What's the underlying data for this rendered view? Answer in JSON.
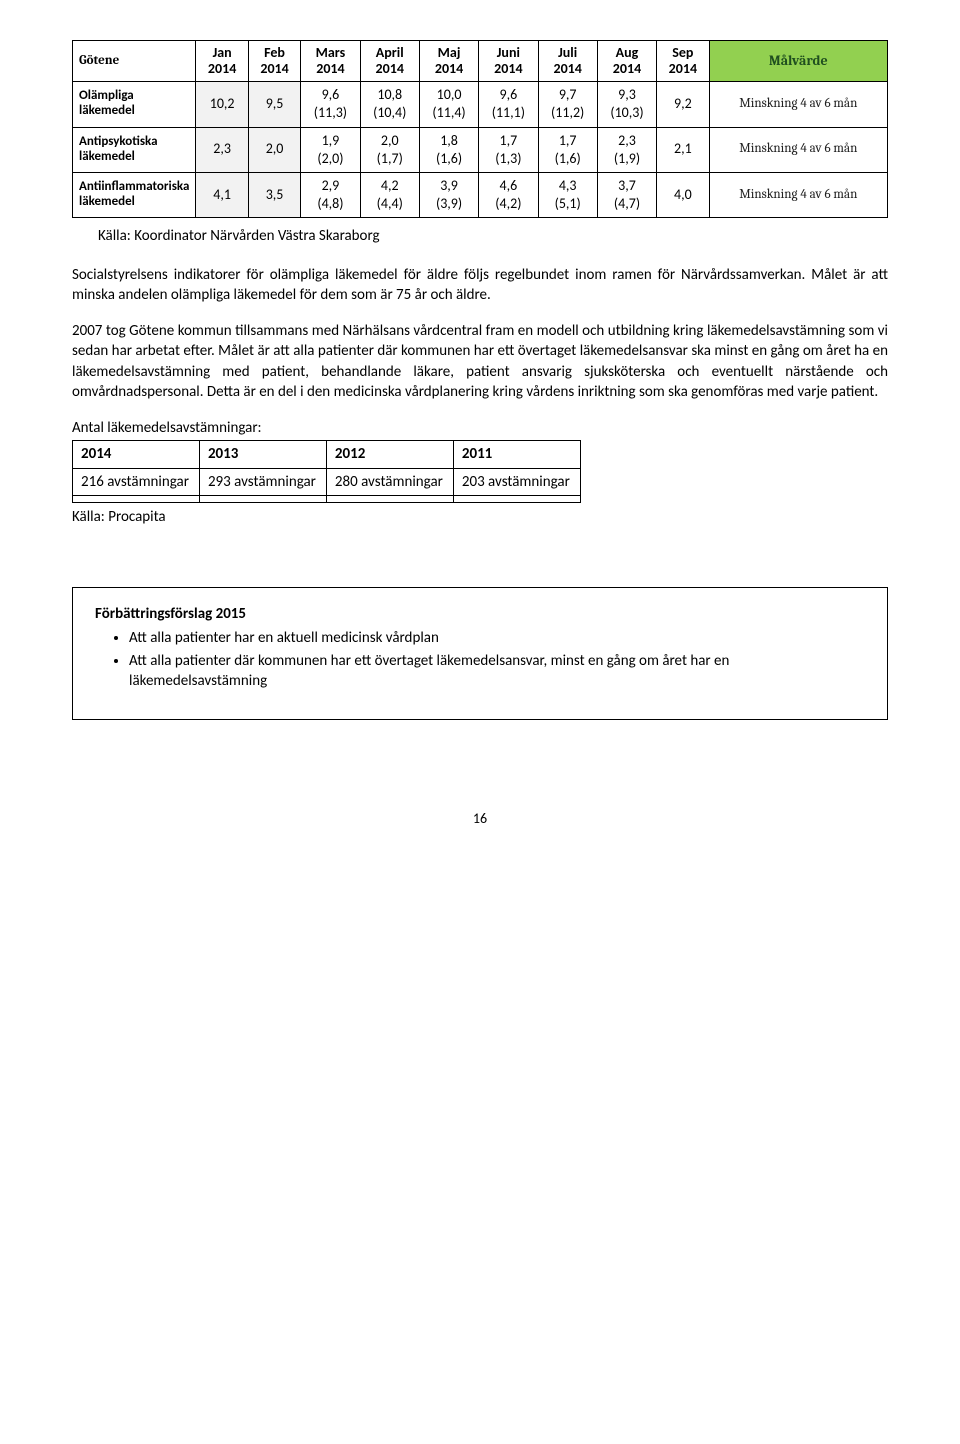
{
  "table1": {
    "corner": "Götene",
    "headers": [
      "Jan\n2014",
      "Feb\n2014",
      "Mars\n2014",
      "April\n2014",
      "Maj\n2014",
      "Juni\n2014",
      "Juli\n2014",
      "Aug\n2014",
      "Sep\n2014",
      "Målvärde"
    ],
    "rows": [
      {
        "label": "Olämpliga läkemedel",
        "jan": "10,2",
        "feb": "9,5",
        "mars": {
          "top": "9,6",
          "sub": "(11,3)"
        },
        "april": {
          "top": "10,8",
          "sub": "(10,4)"
        },
        "maj": {
          "top": "10,0",
          "sub": "(11,4)"
        },
        "juni": {
          "top": "9,6",
          "sub": "(11,1)"
        },
        "juli": {
          "top": "9,7",
          "sub": "(11,2)"
        },
        "aug": {
          "top": "9,3",
          "sub": "(10,3)"
        },
        "sep": "9,2",
        "mal": "Minskning 4 av 6 mån"
      },
      {
        "label": "Antipsykotiska läkemedel",
        "jan": "2,3",
        "feb": "2,0",
        "mars": {
          "top": "1,9",
          "sub": "(2,0)"
        },
        "april": {
          "top": "2,0",
          "sub": "(1,7)"
        },
        "maj": {
          "top": "1,8",
          "sub": "(1,6)"
        },
        "juni": {
          "top": "1,7",
          "sub": "(1,3)"
        },
        "juli": {
          "top": "1,7",
          "sub": "(1,6)"
        },
        "aug": {
          "top": "2,3",
          "sub": "(1,9)"
        },
        "sep": "2,1",
        "mal": "Minskning 4 av 6 mån"
      },
      {
        "label": "Antiinflammatoriska läkemedel",
        "jan": "4,1",
        "feb": "3,5",
        "mars": {
          "top": "2,9",
          "sub": "(4,8)"
        },
        "april": {
          "top": "4,2",
          "sub": "(4,4)"
        },
        "maj": {
          "top": "3,9",
          "sub": "(3,9)"
        },
        "juni": {
          "top": "4,6",
          "sub": "(4,2)"
        },
        "juli": {
          "top": "4,3",
          "sub": "(5,1)"
        },
        "aug": {
          "top": "3,7",
          "sub": "(4,7)"
        },
        "sep": "4,0",
        "mal": "Minskning 4 av 6 mån"
      }
    ],
    "header_bg_malvarde": "#92d050",
    "shaded_bg": "#f2f2f2"
  },
  "source1": "Källa: Koordinator Närvården Västra Skaraborg",
  "para1": "Socialstyrelsens indikatorer för olämpliga läkemedel för äldre följs regelbundet inom ramen för Närvårdssamverkan. Målet är att minska andelen olämpliga läkemedel för dem som är 75 år och äldre.",
  "para2": "2007 tog Götene kommun tillsammans med Närhälsans vårdcentral fram en modell och utbildning kring läkemedelsavstämning som vi sedan har arbetat efter. Målet är att alla patienter där kommunen har ett övertaget läkemedelsansvar ska minst en gång om året ha en läkemedelsavstämning med patient, behandlande läkare, patient ansvarig sjuksköterska och eventuellt närstående och omvårdnadspersonal. Detta är en del i den medicinska vårdplanering kring vårdens inriktning som ska genomföras med varje patient.",
  "table2": {
    "title": "Antal läkemedelsavstämningar:",
    "columns": [
      "2014",
      "2013",
      "2012",
      "2011"
    ],
    "rows": [
      [
        "216 avstämningar",
        "293 avstämningar",
        "280 avstämningar",
        "203 avstämningar"
      ],
      [
        "",
        "",
        "",
        ""
      ]
    ]
  },
  "source2": "Källa: Procapita",
  "box": {
    "title": "Förbättringsförslag 2015",
    "items": [
      "Att alla patienter har en aktuell medicinsk vårdplan",
      "Att alla patienter där kommunen har ett övertaget läkemedelsansvar, minst en gång om året har en läkemedelsavstämning"
    ]
  },
  "page_number": "16"
}
